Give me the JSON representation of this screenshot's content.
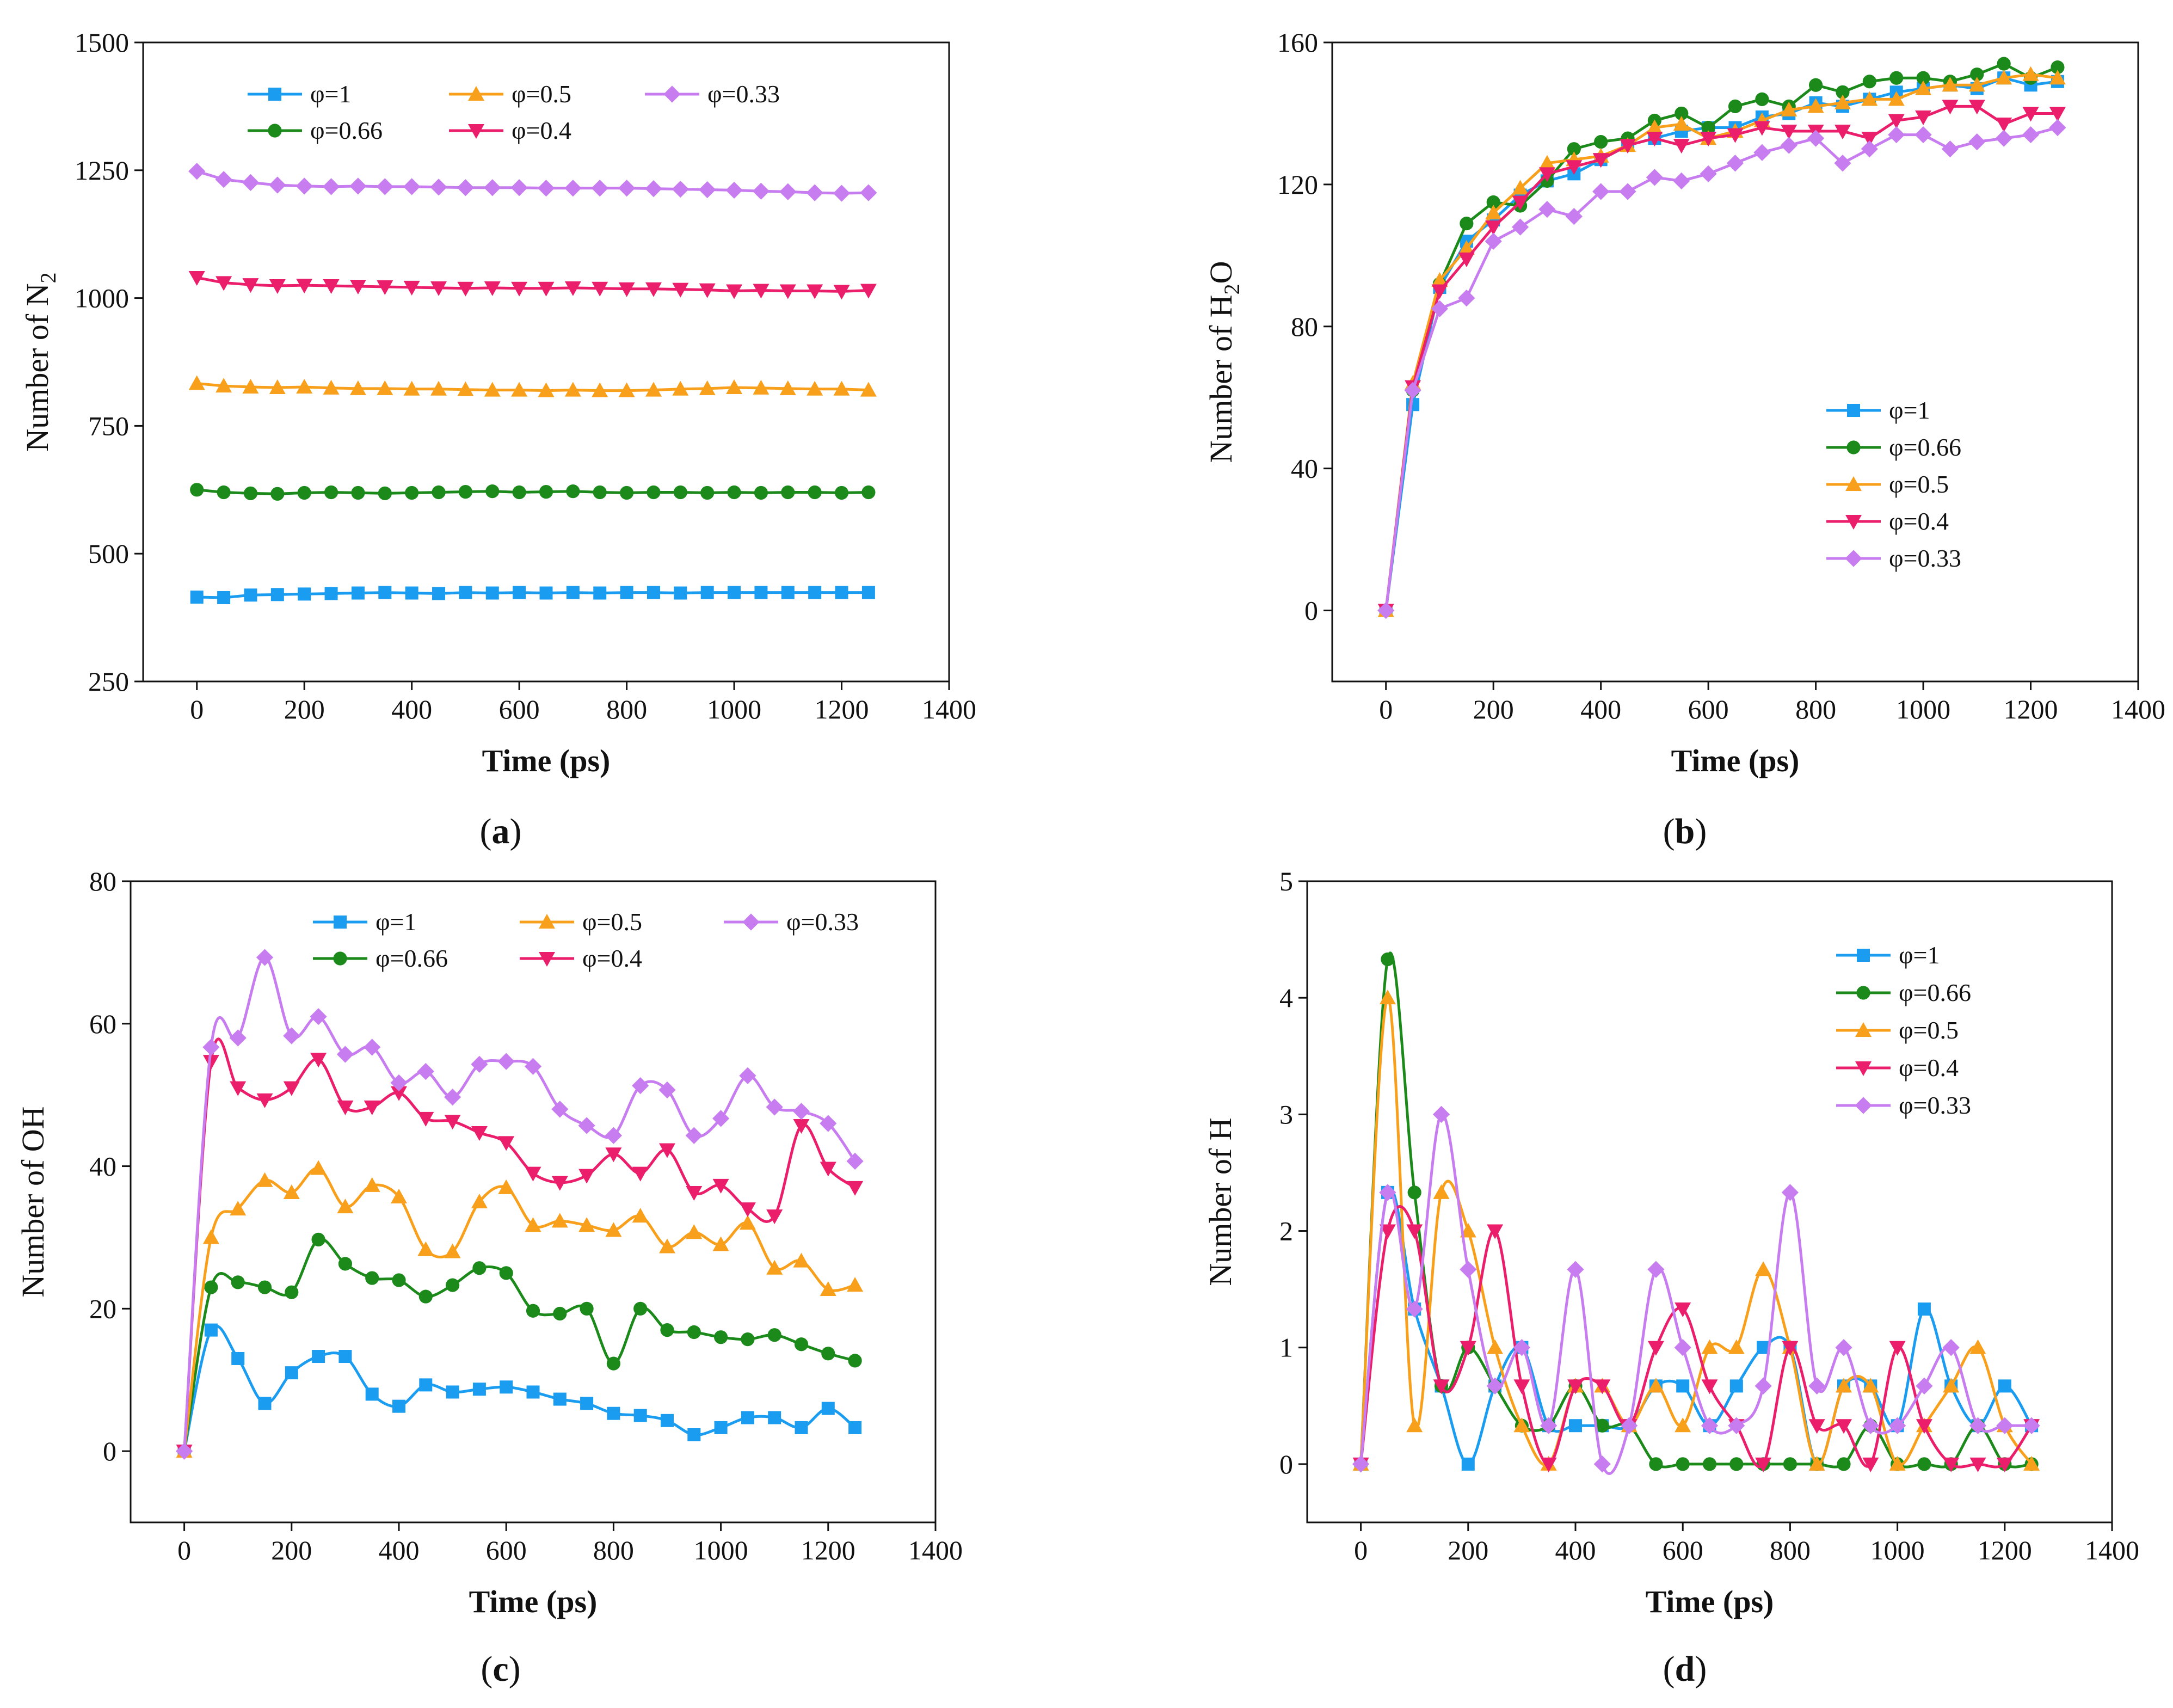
{
  "chart_data": [
    {
      "id": "a",
      "type": "line",
      "caption": "a",
      "xlabel": "Time (ps)",
      "ylabel": "Number of N₂",
      "ylabel_main": "Number of N",
      "ylabel_sub": "2",
      "xlim": [
        -100,
        1400
      ],
      "ylim": [
        250,
        1500
      ],
      "xticks": [
        0,
        200,
        400,
        600,
        800,
        1000,
        1200,
        1400
      ],
      "yticks": [
        250,
        500,
        750,
        1000,
        1250,
        1500
      ],
      "x": [
        0,
        50,
        100,
        150,
        200,
        250,
        300,
        350,
        400,
        450,
        500,
        550,
        600,
        650,
        700,
        750,
        800,
        850,
        900,
        950,
        1000,
        1050,
        1100,
        1150,
        1200,
        1250
      ],
      "legend_position": "top-left",
      "series": [
        {
          "name": "φ=1",
          "values": [
            415,
            414,
            419,
            420,
            421,
            422,
            423,
            424,
            423,
            422,
            424,
            423,
            424,
            423,
            424,
            423,
            424,
            424,
            423,
            424,
            424,
            424,
            424,
            424,
            424,
            424
          ]
        },
        {
          "name": "φ=0.66",
          "values": [
            625,
            620,
            618,
            617,
            619,
            620,
            619,
            618,
            619,
            620,
            621,
            622,
            620,
            621,
            622,
            620,
            619,
            620,
            620,
            619,
            620,
            619,
            620,
            620,
            619,
            620
          ]
        },
        {
          "name": "φ=0.5",
          "values": [
            833,
            828,
            826,
            825,
            826,
            824,
            823,
            823,
            822,
            822,
            821,
            820,
            820,
            819,
            820,
            819,
            819,
            820,
            822,
            823,
            825,
            824,
            823,
            822,
            822,
            820
          ]
        },
        {
          "name": "φ=0.4",
          "values": [
            1040,
            1030,
            1026,
            1024,
            1025,
            1024,
            1023,
            1022,
            1021,
            1020,
            1019,
            1020,
            1019,
            1019,
            1020,
            1019,
            1018,
            1018,
            1017,
            1016,
            1014,
            1015,
            1014,
            1014,
            1013,
            1015
          ]
        },
        {
          "name": "φ=0.33",
          "values": [
            1248,
            1232,
            1226,
            1221,
            1219,
            1218,
            1219,
            1218,
            1218,
            1217,
            1216,
            1216,
            1216,
            1215,
            1215,
            1215,
            1215,
            1214,
            1213,
            1212,
            1211,
            1209,
            1208,
            1206,
            1205,
            1206
          ]
        }
      ]
    },
    {
      "id": "b",
      "type": "line",
      "caption": "b",
      "xlabel": "Time (ps)",
      "ylabel": "Number of H₂O",
      "ylabel_main": "Number of H",
      "ylabel_sub": "2",
      "ylabel_tail": "O",
      "xlim": [
        -100,
        1400
      ],
      "ylim": [
        -20,
        160
      ],
      "xticks": [
        0,
        200,
        400,
        600,
        800,
        1000,
        1200,
        1400
      ],
      "yticks": [
        0,
        40,
        80,
        120,
        160
      ],
      "x": [
        0,
        50,
        100,
        150,
        200,
        250,
        300,
        350,
        400,
        450,
        500,
        550,
        600,
        650,
        700,
        750,
        800,
        850,
        900,
        950,
        1000,
        1050,
        1100,
        1150,
        1200,
        1250
      ],
      "legend_position": "bottom-right",
      "series": [
        {
          "name": "φ=1",
          "values": [
            0,
            58,
            91,
            104,
            110,
            117,
            121,
            123,
            127,
            131,
            133,
            135,
            136,
            136,
            139,
            140,
            143,
            142,
            144,
            146,
            147,
            148,
            147,
            150,
            148,
            149
          ]
        },
        {
          "name": "φ=0.66",
          "values": [
            0,
            62,
            92,
            109,
            115,
            114,
            121,
            130,
            132,
            133,
            138,
            140,
            136,
            142,
            144,
            142,
            148,
            146,
            149,
            150,
            150,
            149,
            151,
            154,
            150,
            153
          ]
        },
        {
          "name": "φ=0.5",
          "values": [
            0,
            64,
            93,
            102,
            112,
            119,
            126,
            127,
            128,
            131,
            136,
            137,
            133,
            135,
            138,
            141,
            142,
            143,
            144,
            144,
            147,
            148,
            148,
            150,
            151,
            150
          ]
        },
        {
          "name": "φ=0.4",
          "values": [
            0,
            63,
            90,
            99,
            108,
            115,
            123,
            125,
            127,
            131,
            133,
            131,
            133,
            134,
            136,
            135,
            135,
            135,
            133,
            138,
            139,
            142,
            142,
            137,
            140,
            140
          ]
        },
        {
          "name": "φ=0.33",
          "values": [
            0,
            62,
            85,
            88,
            104,
            108,
            113,
            111,
            118,
            118,
            122,
            121,
            123,
            126,
            129,
            131,
            133,
            126,
            130,
            134,
            134,
            130,
            132,
            133,
            134,
            136
          ]
        }
      ]
    },
    {
      "id": "c",
      "type": "scatter",
      "caption": "c",
      "xlabel": "Time (ps)",
      "ylabel": "Number of OH",
      "xlim": [
        -100,
        1400
      ],
      "ylim": [
        -10,
        80
      ],
      "xticks": [
        0,
        200,
        400,
        600,
        800,
        1000,
        1200,
        1400
      ],
      "yticks": [
        0,
        20,
        40,
        60,
        80
      ],
      "x": [
        0,
        50,
        100,
        150,
        200,
        250,
        300,
        350,
        400,
        450,
        500,
        550,
        600,
        650,
        700,
        750,
        800,
        850,
        900,
        950,
        1000,
        1050,
        1100,
        1150,
        1200,
        1250
      ],
      "smoothed_line": true,
      "legend_position": "top-center",
      "series": [
        {
          "name": "φ=1",
          "values": [
            0,
            17,
            13,
            6.7,
            11,
            13.3,
            13.3,
            8,
            6.3,
            9.3,
            8.3,
            8.7,
            9,
            8.3,
            7.3,
            6.7,
            5.3,
            5,
            4.3,
            2.3,
            3.3,
            4.7,
            4.7,
            3.3,
            6,
            3.3
          ]
        },
        {
          "name": "φ=0.66",
          "values": [
            0,
            23,
            23.7,
            23,
            22.3,
            29.7,
            26.3,
            24.3,
            24,
            21.7,
            23.3,
            25.7,
            25,
            19.7,
            19.3,
            20,
            12.3,
            20,
            17,
            16.7,
            16,
            15.7,
            16.3,
            15,
            13.7,
            12.7
          ]
        },
        {
          "name": "φ=0.5",
          "values": [
            0,
            30,
            34,
            38,
            36.3,
            39.7,
            34.3,
            37.3,
            35.7,
            28.3,
            28,
            35,
            37,
            31.7,
            32.3,
            31.7,
            31,
            33,
            28.7,
            30.7,
            29,
            32,
            25.7,
            26.7,
            22.7,
            23.3
          ]
        },
        {
          "name": "φ=0.4",
          "values": [
            0,
            54.7,
            51,
            49.3,
            51,
            55,
            48.3,
            48.3,
            50.3,
            46.7,
            46.3,
            44.7,
            43.3,
            39,
            37.7,
            38.7,
            41.7,
            39,
            42.3,
            36.3,
            37.3,
            34,
            33,
            45.7,
            39.7,
            37
          ]
        },
        {
          "name": "φ=0.33",
          "values": [
            0,
            56.7,
            58,
            69.3,
            58.3,
            61,
            55.7,
            56.7,
            51.7,
            53.3,
            49.7,
            54.3,
            54.7,
            54,
            48,
            45.7,
            44.3,
            51.3,
            50.7,
            44.3,
            46.7,
            52.7,
            48.3,
            47.7,
            46,
            40.7
          ]
        }
      ]
    },
    {
      "id": "d",
      "type": "scatter",
      "caption": "d",
      "xlabel": "Time (ps)",
      "ylabel": "Number of H",
      "xlim": [
        -100,
        1400
      ],
      "ylim": [
        -0.5,
        5
      ],
      "xticks": [
        0,
        200,
        400,
        600,
        800,
        1000,
        1200,
        1400
      ],
      "yticks": [
        0,
        1,
        2,
        3,
        4,
        5
      ],
      "x": [
        0,
        50,
        100,
        150,
        200,
        250,
        300,
        350,
        400,
        450,
        500,
        550,
        600,
        650,
        700,
        750,
        800,
        850,
        900,
        950,
        1000,
        1050,
        1100,
        1150,
        1200,
        1250
      ],
      "smoothed_line": true,
      "legend_position": "top-right",
      "series": [
        {
          "name": "φ=1",
          "values": [
            0,
            2.33,
            1.33,
            0.67,
            0,
            0.67,
            1,
            0.33,
            0.33,
            0.33,
            0.33,
            0.67,
            0.67,
            0.33,
            0.67,
            1,
            1,
            0,
            0.67,
            0.67,
            0.33,
            1.33,
            0.67,
            0.33,
            0.67,
            0.33
          ]
        },
        {
          "name": "φ=0.66",
          "values": [
            0,
            4.33,
            2.33,
            0.67,
            1,
            0.67,
            0.33,
            0.33,
            0.67,
            0.33,
            0.33,
            0,
            0,
            0,
            0,
            0,
            0,
            0,
            0,
            0.33,
            0,
            0,
            0,
            0.33,
            0,
            0
          ]
        },
        {
          "name": "φ=0.5",
          "values": [
            0,
            4,
            0.33,
            2.33,
            2,
            1,
            0.33,
            0,
            0.67,
            0.67,
            0.33,
            0.67,
            0.33,
            1,
            1,
            1.67,
            1,
            0,
            0.67,
            0.67,
            0,
            0.33,
            0.67,
            1,
            0.33,
            0
          ]
        },
        {
          "name": "φ=0.4",
          "values": [
            0,
            2,
            2,
            0.67,
            1,
            2,
            0.67,
            0,
            0.67,
            0.67,
            0.33,
            1,
            1.33,
            0.67,
            0.33,
            0,
            1,
            0.33,
            0.33,
            0,
            1,
            0.33,
            0,
            0,
            0,
            0.33
          ]
        },
        {
          "name": "φ=0.33",
          "values": [
            0,
            2.33,
            1.33,
            3,
            1.67,
            0.67,
            1,
            0.33,
            1.67,
            0,
            0.33,
            1.67,
            1,
            0.33,
            0.33,
            0.67,
            2.33,
            0.67,
            1,
            0.33,
            0.33,
            0.67,
            1,
            0.33,
            0.33,
            0.33
          ]
        }
      ]
    }
  ],
  "style": {
    "series_colors": {
      "φ=1": "#1a9cf0",
      "φ=0.66": "#1b8a1b",
      "φ=0.5": "#f8a01c",
      "φ=0.4": "#ea1e6b",
      "φ=0.33": "#c77cf0"
    },
    "series_markers": {
      "φ=1": "square",
      "φ=0.66": "circle",
      "φ=0.5": "triangle-up",
      "φ=0.4": "triangle-down",
      "φ=0.33": "diamond"
    }
  }
}
